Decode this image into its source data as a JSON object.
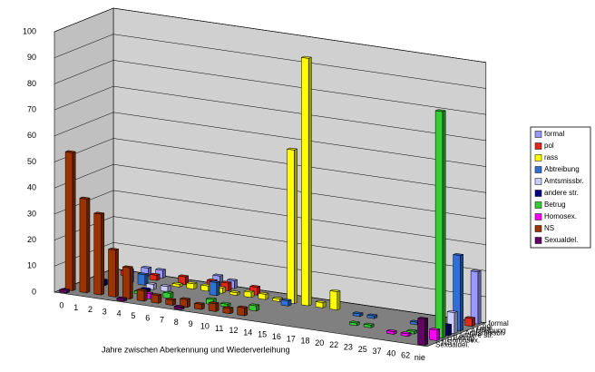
{
  "chart_data": {
    "type": "bar3d",
    "x_label": "Jahre zwischen Aberkennung und Wiederverleihung",
    "categories": [
      "0",
      "1",
      "2",
      "3",
      "4",
      "5",
      "6",
      "7",
      "8",
      "9",
      "10",
      "11",
      "12",
      "14",
      "15",
      "16",
      "17",
      "18",
      "20",
      "22",
      "23",
      "25",
      "37",
      "40",
      "62",
      "nie"
    ],
    "ylim": [
      0,
      100
    ],
    "yticks": [
      0,
      10,
      20,
      30,
      40,
      50,
      60,
      70,
      80,
      90,
      100
    ],
    "grid": true,
    "legend": "right",
    "series": [
      {
        "name": "formal",
        "color": "#9999ff",
        "values": [
          null,
          null,
          3,
          3,
          null,
          null,
          null,
          4,
          3,
          null,
          null,
          null,
          null,
          null,
          null,
          null,
          null,
          null,
          null,
          null,
          null,
          null,
          null,
          null,
          null,
          20
        ]
      },
      {
        "name": "pol",
        "color": "#e0281a",
        "values": [
          null,
          2,
          null,
          2,
          null,
          3,
          null,
          3,
          3,
          null,
          3,
          null,
          null,
          null,
          null,
          null,
          null,
          null,
          null,
          null,
          null,
          null,
          null,
          null,
          null,
          3
        ]
      },
      {
        "name": "rass",
        "color": "#ffff00",
        "values": [
          null,
          null,
          null,
          null,
          null,
          1,
          2,
          2,
          2,
          1,
          2,
          2,
          1,
          59,
          95,
          2,
          7,
          null,
          null,
          null,
          null,
          null,
          null,
          null,
          null,
          null
        ]
      },
      {
        "name": "Abtreibung",
        "color": "#3070d0",
        "values": [
          null,
          null,
          5,
          4,
          null,
          null,
          null,
          null,
          5,
          null,
          null,
          null,
          null,
          2,
          null,
          null,
          null,
          null,
          1,
          1,
          null,
          null,
          1,
          null,
          null,
          29
        ]
      },
      {
        "name": "Amtsmissbr.",
        "color": "#ccccff",
        "values": [
          null,
          null,
          null,
          null,
          2,
          2,
          null,
          null,
          null,
          null,
          null,
          null,
          null,
          null,
          null,
          null,
          null,
          null,
          null,
          null,
          null,
          null,
          null,
          null,
          null,
          8
        ]
      },
      {
        "name": "andere str.",
        "color": "#000080",
        "values": [
          null,
          2,
          null,
          null,
          1,
          null,
          null,
          null,
          null,
          null,
          null,
          null,
          null,
          null,
          null,
          null,
          null,
          null,
          null,
          null,
          null,
          null,
          null,
          null,
          null,
          4
        ]
      },
      {
        "name": "Betrug",
        "color": "#33cc33",
        "values": [
          null,
          null,
          null,
          null,
          1,
          null,
          2,
          null,
          null,
          2,
          1,
          null,
          2,
          null,
          null,
          null,
          null,
          null,
          null,
          1,
          1,
          null,
          null,
          1,
          null,
          87
        ]
      },
      {
        "name": "Homosex.",
        "color": "#ff00ff",
        "values": [
          null,
          null,
          null,
          null,
          null,
          2,
          null,
          null,
          null,
          null,
          null,
          null,
          null,
          null,
          null,
          null,
          null,
          null,
          null,
          null,
          null,
          null,
          1,
          1,
          null,
          4
        ]
      },
      {
        "name": "NS",
        "color": "#993300",
        "values": [
          53,
          36,
          31,
          18,
          12,
          4,
          3,
          2,
          3,
          2,
          3,
          2,
          3,
          null,
          null,
          null,
          null,
          null,
          null,
          null,
          null,
          null,
          null,
          null,
          null,
          null
        ]
      },
      {
        "name": "Sexualdel.",
        "color": "#660066",
        "values": [
          1,
          null,
          null,
          null,
          1,
          null,
          null,
          null,
          1,
          null,
          null,
          null,
          null,
          null,
          null,
          null,
          null,
          null,
          null,
          null,
          null,
          null,
          null,
          null,
          null,
          10
        ]
      }
    ]
  }
}
